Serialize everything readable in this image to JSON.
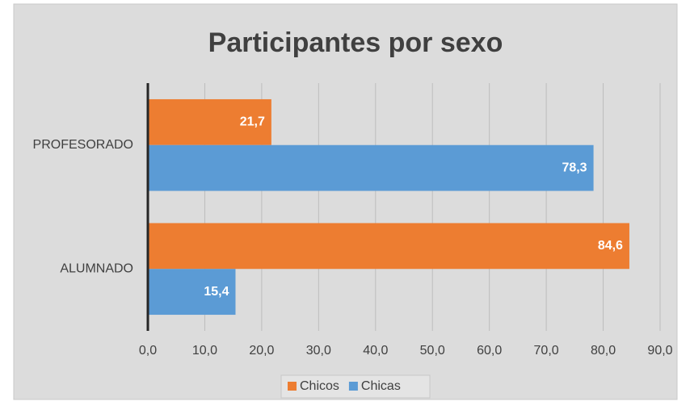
{
  "chart_data": {
    "type": "hbar",
    "title": "Participantes por sexo",
    "categories": [
      "PROFESORADO",
      "ALUMNADO"
    ],
    "series": [
      {
        "name": "Chicos",
        "color": "#ed7d31",
        "values": [
          21.7,
          84.6
        ],
        "value_labels": [
          "21,7",
          "84,6"
        ]
      },
      {
        "name": "Chicas",
        "color": "#5b9bd5",
        "values": [
          78.3,
          15.4
        ],
        "value_labels": [
          "78,3",
          "15,4"
        ]
      }
    ],
    "xlim": [
      0,
      90
    ],
    "xticks": [
      {
        "value": 0,
        "label": "0,0"
      },
      {
        "value": 10,
        "label": "10,0"
      },
      {
        "value": 20,
        "label": "20,0"
      },
      {
        "value": 30,
        "label": "30,0"
      },
      {
        "value": 40,
        "label": "40,0"
      },
      {
        "value": 50,
        "label": "50,0"
      },
      {
        "value": 60,
        "label": "60,0"
      },
      {
        "value": 70,
        "label": "70,0"
      },
      {
        "value": 80,
        "label": "80,0"
      },
      {
        "value": 90,
        "label": "90,0"
      }
    ],
    "grid": true,
    "legend": "bottom"
  }
}
